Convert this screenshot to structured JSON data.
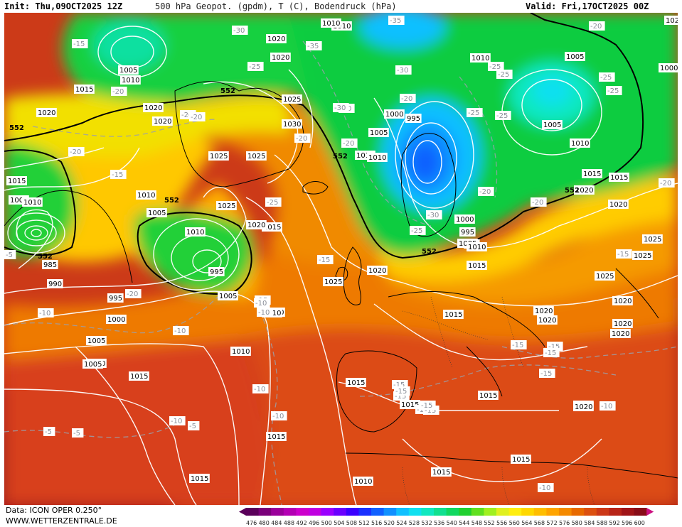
{
  "header": {
    "init": "Init: Thu,09OCT2025 12Z",
    "title": "500 hPa Geopot. (gpdm), T (C), Bodendruck (hPa)",
    "valid": "Valid: Fri,17OCT2025 00Z"
  },
  "footer": {
    "data_source": "Data: ICON OPER 0.250°",
    "website": "WWW.WETTERZENTRALE.DE"
  },
  "colorbar": {
    "ticks": [
      "476",
      "480",
      "484",
      "488",
      "492",
      "496",
      "500",
      "504",
      "508",
      "512",
      "516",
      "520",
      "524",
      "528",
      "532",
      "536",
      "540",
      "544",
      "548",
      "552",
      "556",
      "560",
      "564",
      "568",
      "572",
      "576",
      "580",
      "584",
      "588",
      "592",
      "596",
      "600"
    ],
    "colors": [
      "#5a005a",
      "#7a007a",
      "#9a009a",
      "#b400b4",
      "#cc00cc",
      "#c000e0",
      "#9a00ff",
      "#6a00ff",
      "#3a00ff",
      "#1a30ff",
      "#1060ff",
      "#1090ff",
      "#10c0ff",
      "#10e0f0",
      "#10e8c0",
      "#10e090",
      "#10d860",
      "#20d030",
      "#60e020",
      "#a0f020",
      "#e0f020",
      "#ffee10",
      "#ffd800",
      "#ffbe00",
      "#ffa400",
      "#f58a00",
      "#e86a00",
      "#dc5010",
      "#cc3818",
      "#b82418",
      "#a01418",
      "#880c18"
    ]
  },
  "pressure_labels": [
    {
      "text": "1020"
    },
    {
      "text": "1010"
    },
    {
      "text": "1005"
    },
    {
      "text": "1010"
    },
    {
      "text": "1015"
    },
    {
      "text": "1020"
    },
    {
      "text": "1020"
    },
    {
      "text": "1020"
    },
    {
      "text": "1020"
    },
    {
      "text": "1020"
    },
    {
      "text": "1025"
    },
    {
      "text": "1030"
    },
    {
      "text": "1025"
    },
    {
      "text": "1025"
    },
    {
      "text": "1015"
    },
    {
      "text": "1010"
    },
    {
      "text": "1010"
    },
    {
      "text": "1005"
    },
    {
      "text": "1000"
    },
    {
      "text": "1005"
    },
    {
      "text": "1000"
    },
    {
      "text": "995"
    },
    {
      "text": "985"
    },
    {
      "text": "990"
    },
    {
      "text": "995"
    },
    {
      "text": "1000"
    },
    {
      "text": "1005"
    },
    {
      "text": "1010"
    },
    {
      "text": "1015"
    },
    {
      "text": "1015"
    },
    {
      "text": "1010"
    },
    {
      "text": "1005"
    },
    {
      "text": "1000"
    },
    {
      "text": "995"
    },
    {
      "text": "1005"
    },
    {
      "text": "1010"
    },
    {
      "text": "1020"
    },
    {
      "text": "1025"
    },
    {
      "text": "1010"
    },
    {
      "text": "1015"
    },
    {
      "text": "1010"
    },
    {
      "text": "1005"
    },
    {
      "text": "1000"
    },
    {
      "text": "995"
    },
    {
      "text": "990"
    },
    {
      "text": "1005"
    },
    {
      "text": "1010"
    },
    {
      "text": "1015"
    },
    {
      "text": "1020"
    },
    {
      "text": "1025"
    },
    {
      "text": "1015"
    },
    {
      "text": "1020"
    },
    {
      "text": "1025"
    },
    {
      "text": "1020"
    },
    {
      "text": "1025"
    },
    {
      "text": "1020"
    },
    {
      "text": "1015"
    },
    {
      "text": "1020"
    },
    {
      "text": "1025"
    },
    {
      "text": "1020"
    },
    {
      "text": "1015"
    },
    {
      "text": "1015"
    },
    {
      "text": "1015"
    },
    {
      "text": "1015"
    },
    {
      "text": "1015"
    },
    {
      "text": "1020"
    },
    {
      "text": "1015"
    },
    {
      "text": "1010"
    },
    {
      "text": "1015"
    },
    {
      "text": "1005"
    },
    {
      "text": "1010"
    },
    {
      "text": "1015"
    },
    {
      "text": "1015"
    },
    {
      "text": "1010"
    },
    {
      "text": "1005"
    },
    {
      "text": "1010"
    },
    {
      "text": "1020"
    },
    {
      "text": "1020"
    },
    {
      "text": "1010"
    },
    {
      "text": "1020"
    }
  ],
  "temperature_labels": [
    {
      "text": "-15"
    },
    {
      "text": "-20"
    },
    {
      "text": "-25"
    },
    {
      "text": "-30"
    },
    {
      "text": "-35"
    },
    {
      "text": "-35"
    },
    {
      "text": "-30"
    },
    {
      "text": "-25"
    },
    {
      "text": "-20"
    },
    {
      "text": "-20"
    },
    {
      "text": "-25"
    },
    {
      "text": "-25"
    },
    {
      "text": "-20"
    },
    {
      "text": "-20"
    },
    {
      "text": "-15"
    },
    {
      "text": "-20"
    },
    {
      "text": "-25"
    },
    {
      "text": "-30"
    },
    {
      "text": "-25"
    },
    {
      "text": "-20"
    },
    {
      "text": "-20"
    },
    {
      "text": "-25"
    },
    {
      "text": "-30"
    },
    {
      "text": "-20"
    },
    {
      "text": "-25"
    },
    {
      "text": "-20"
    },
    {
      "text": "-15"
    },
    {
      "text": "-15"
    },
    {
      "text": "-10"
    },
    {
      "text": "-10"
    },
    {
      "text": "-10"
    },
    {
      "text": "-15"
    },
    {
      "text": "-15"
    },
    {
      "text": "-15"
    },
    {
      "text": "-15"
    },
    {
      "text": "-10"
    },
    {
      "text": "-10"
    },
    {
      "text": "-5"
    },
    {
      "text": "-5"
    },
    {
      "text": "-5"
    },
    {
      "text": "-15"
    },
    {
      "text": "-10"
    },
    {
      "text": "-15"
    },
    {
      "text": "-15"
    },
    {
      "text": "-15"
    },
    {
      "text": "-15"
    },
    {
      "text": "-10"
    },
    {
      "text": "-10"
    },
    {
      "text": "-20"
    },
    {
      "text": "-20"
    },
    {
      "text": "-15"
    },
    {
      "text": "-10"
    },
    {
      "text": "-15"
    },
    {
      "text": "-30"
    },
    {
      "text": "-25"
    },
    {
      "text": "-5"
    }
  ],
  "geopotential_labels": [
    {
      "text": "552"
    },
    {
      "text": "552"
    },
    {
      "text": "552"
    },
    {
      "text": "552"
    },
    {
      "text": "552"
    },
    {
      "text": "552"
    },
    {
      "text": "552"
    }
  ]
}
